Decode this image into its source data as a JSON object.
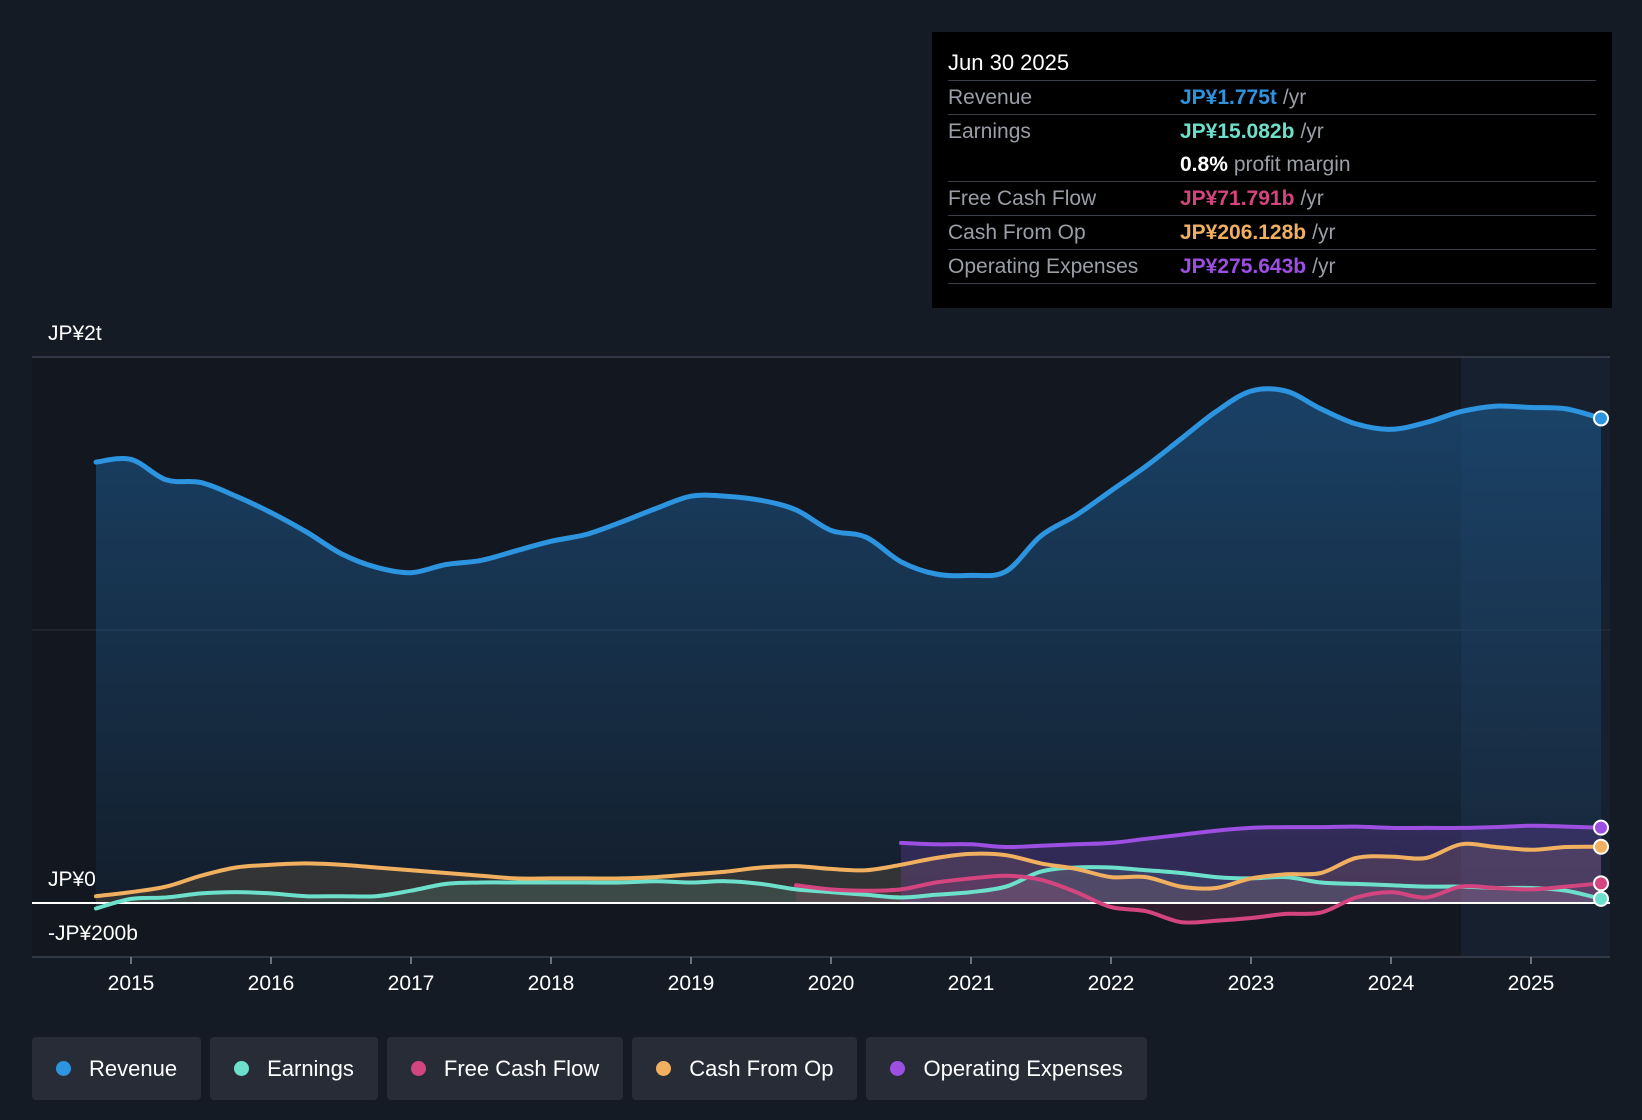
{
  "chart_data": {
    "type": "line",
    "title": "",
    "xlabel": "",
    "ylabel": "",
    "y_axis_labels": {
      "top": "JP¥2t",
      "zero": "JP¥0",
      "bottom": "-JP¥200b"
    },
    "ylim": [
      -200,
      2000
    ],
    "xlim": [
      2014.75,
      2025.5
    ],
    "x_ticks": [
      "2015",
      "2016",
      "2017",
      "2018",
      "2019",
      "2020",
      "2021",
      "2022",
      "2023",
      "2024",
      "2025"
    ],
    "x_tick_values": [
      2015,
      2016,
      2017,
      2018,
      2019,
      2020,
      2021,
      2022,
      2023,
      2024,
      2025
    ],
    "highlight_start": 2024.5,
    "series": [
      {
        "name": "Revenue",
        "color": "#2d94e0",
        "x": [
          2014.75,
          2015.0,
          2015.25,
          2015.5,
          2015.75,
          2016.0,
          2016.25,
          2016.5,
          2016.75,
          2017.0,
          2017.25,
          2017.5,
          2017.75,
          2018.0,
          2018.25,
          2018.5,
          2018.75,
          2019.0,
          2019.25,
          2019.5,
          2019.75,
          2020.0,
          2020.25,
          2020.5,
          2020.75,
          2021.0,
          2021.25,
          2021.5,
          2021.75,
          2022.0,
          2022.25,
          2022.5,
          2022.75,
          2023.0,
          2023.25,
          2023.5,
          2023.75,
          2024.0,
          2024.25,
          2024.5,
          2024.75,
          2025.0,
          2025.25,
          2025.5
        ],
        "values": [
          1615,
          1625,
          1550,
          1540,
          1490,
          1430,
          1360,
          1280,
          1230,
          1210,
          1240,
          1255,
          1290,
          1325,
          1350,
          1395,
          1445,
          1490,
          1490,
          1475,
          1440,
          1365,
          1340,
          1250,
          1205,
          1200,
          1215,
          1345,
          1420,
          1510,
          1600,
          1700,
          1800,
          1875,
          1875,
          1810,
          1755,
          1735,
          1760,
          1800,
          1820,
          1815,
          1810,
          1775
        ]
      },
      {
        "name": "Earnings",
        "color": "#6de0cc",
        "x": [
          2014.75,
          2015.0,
          2015.25,
          2015.5,
          2015.75,
          2016.0,
          2016.25,
          2016.5,
          2016.75,
          2017.0,
          2017.25,
          2017.5,
          2017.75,
          2018.0,
          2018.25,
          2018.5,
          2018.75,
          2019.0,
          2019.25,
          2019.5,
          2019.75,
          2020.0,
          2020.25,
          2020.5,
          2020.75,
          2021.0,
          2021.25,
          2021.5,
          2021.75,
          2022.0,
          2022.25,
          2022.5,
          2022.75,
          2023.0,
          2023.25,
          2023.5,
          2023.75,
          2024.0,
          2024.25,
          2024.5,
          2024.75,
          2025.0,
          2025.25,
          2025.5
        ],
        "values": [
          -20,
          15,
          20,
          35,
          40,
          35,
          25,
          25,
          25,
          45,
          70,
          75,
          75,
          75,
          75,
          75,
          80,
          75,
          80,
          70,
          50,
          40,
          30,
          20,
          30,
          40,
          60,
          115,
          130,
          130,
          120,
          110,
          95,
          90,
          95,
          75,
          70,
          65,
          60,
          60,
          55,
          55,
          45,
          15
        ]
      },
      {
        "name": "Free Cash Flow",
        "color": "#d4457f",
        "x": [
          2019.75,
          2020.0,
          2020.25,
          2020.5,
          2020.75,
          2021.0,
          2021.25,
          2021.5,
          2021.75,
          2022.0,
          2022.25,
          2022.5,
          2022.75,
          2023.0,
          2023.25,
          2023.5,
          2023.75,
          2024.0,
          2024.25,
          2024.5,
          2024.75,
          2025.0,
          2025.25,
          2025.5
        ],
        "values": [
          65,
          50,
          45,
          50,
          75,
          90,
          100,
          85,
          40,
          -15,
          -30,
          -70,
          -65,
          -55,
          -40,
          -35,
          20,
          40,
          20,
          60,
          55,
          50,
          60,
          72
        ]
      },
      {
        "name": "Cash From Op",
        "color": "#f0b060",
        "x": [
          2014.75,
          2015.0,
          2015.25,
          2015.5,
          2015.75,
          2016.0,
          2016.25,
          2016.5,
          2016.75,
          2017.0,
          2017.25,
          2017.5,
          2017.75,
          2018.0,
          2018.25,
          2018.5,
          2018.75,
          2019.0,
          2019.25,
          2019.5,
          2019.75,
          2020.0,
          2020.25,
          2020.5,
          2020.75,
          2021.0,
          2021.25,
          2021.5,
          2021.75,
          2022.0,
          2022.25,
          2022.5,
          2022.75,
          2023.0,
          2023.25,
          2023.5,
          2023.75,
          2024.0,
          2024.25,
          2024.5,
          2024.75,
          2025.0,
          2025.25,
          2025.5
        ],
        "values": [
          25,
          40,
          60,
          100,
          130,
          140,
          145,
          140,
          130,
          120,
          110,
          100,
          90,
          90,
          90,
          90,
          95,
          105,
          115,
          130,
          135,
          125,
          120,
          140,
          165,
          180,
          175,
          145,
          125,
          95,
          95,
          60,
          55,
          90,
          105,
          110,
          165,
          170,
          165,
          215,
          205,
          195,
          205,
          206
        ]
      },
      {
        "name": "Operating Expenses",
        "color": "#9c4fe0",
        "x": [
          2020.5,
          2020.75,
          2021.0,
          2021.25,
          2021.5,
          2021.75,
          2022.0,
          2022.25,
          2022.5,
          2022.75,
          2023.0,
          2023.25,
          2023.5,
          2023.75,
          2024.0,
          2024.25,
          2024.5,
          2024.75,
          2025.0,
          2025.25,
          2025.5
        ],
        "values": [
          220,
          215,
          215,
          205,
          210,
          215,
          220,
          235,
          250,
          265,
          275,
          278,
          278,
          280,
          275,
          275,
          275,
          278,
          283,
          280,
          276
        ]
      }
    ]
  },
  "tooltip": {
    "date": "Jun 30 2025",
    "rows": [
      {
        "label": "Revenue",
        "value": "JP¥1.775t",
        "unit": "/yr",
        "color": "#2d94e0"
      },
      {
        "label": "Earnings",
        "value": "JP¥15.082b",
        "unit": "/yr",
        "color": "#6de0cc"
      },
      {
        "label": "",
        "value": "0.8%",
        "unit": "profit margin",
        "color": "#ffffff"
      },
      {
        "label": "Free Cash Flow",
        "value": "JP¥71.791b",
        "unit": "/yr",
        "color": "#d4457f"
      },
      {
        "label": "Cash From Op",
        "value": "JP¥206.128b",
        "unit": "/yr",
        "color": "#f0b060"
      },
      {
        "label": "Operating Expenses",
        "value": "JP¥275.643b",
        "unit": "/yr",
        "color": "#9c4fe0"
      }
    ]
  },
  "legend": [
    {
      "label": "Revenue",
      "color": "#2d94e0"
    },
    {
      "label": "Earnings",
      "color": "#6de0cc"
    },
    {
      "label": "Free Cash Flow",
      "color": "#d4457f"
    },
    {
      "label": "Cash From Op",
      "color": "#f0b060"
    },
    {
      "label": "Operating Expenses",
      "color": "#9c4fe0"
    }
  ]
}
